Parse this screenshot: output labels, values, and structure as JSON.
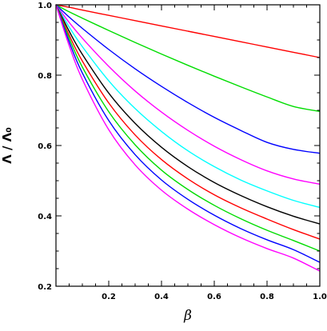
{
  "chart_data": {
    "type": "line",
    "title": "",
    "xlabel": "β",
    "ylabel": "Λ / Λ₀",
    "xlim": [
      0.0,
      1.0
    ],
    "ylim": [
      0.2,
      1.0
    ],
    "x_ticks": [
      0.2,
      0.4,
      0.6,
      0.8,
      1.0
    ],
    "x_tick_labels": [
      "0.2",
      "0.4",
      "0.6",
      "0.8",
      "1.0"
    ],
    "y_ticks": [
      0.2,
      0.4,
      0.6,
      0.8,
      1.0
    ],
    "y_tick_labels": [
      "0.2",
      "0.4",
      "0.6",
      "0.8",
      "1.0"
    ],
    "x_minor_step": 0.05,
    "y_minor_step": 0.05,
    "grid": false,
    "legend": "none",
    "x": [
      0.0,
      0.05,
      0.1,
      0.2,
      0.3,
      0.4,
      0.5,
      0.6,
      0.7,
      0.8,
      0.9,
      1.0
    ],
    "series": [
      {
        "color": "#ff0000",
        "values": [
          1.0,
          0.993,
          0.985,
          0.97,
          0.955,
          0.94,
          0.925,
          0.91,
          0.895,
          0.88,
          0.865,
          0.85
        ]
      },
      {
        "color": "#00dd00",
        "values": [
          1.0,
          0.98,
          0.962,
          0.927,
          0.893,
          0.86,
          0.828,
          0.797,
          0.767,
          0.738,
          0.711,
          0.697
        ]
      },
      {
        "color": "#0000ff",
        "values": [
          1.0,
          0.965,
          0.933,
          0.873,
          0.818,
          0.768,
          0.722,
          0.68,
          0.643,
          0.609,
          0.589,
          0.578
        ]
      },
      {
        "color": "#ff00ff",
        "values": [
          1.0,
          0.95,
          0.905,
          0.825,
          0.755,
          0.695,
          0.643,
          0.598,
          0.56,
          0.528,
          0.505,
          0.49
        ]
      },
      {
        "color": "#00ffff",
        "values": [
          1.0,
          0.937,
          0.881,
          0.784,
          0.705,
          0.64,
          0.585,
          0.54,
          0.502,
          0.471,
          0.444,
          0.424
        ]
      },
      {
        "color": "#000000",
        "values": [
          1.0,
          0.925,
          0.859,
          0.749,
          0.663,
          0.595,
          0.54,
          0.495,
          0.458,
          0.426,
          0.399,
          0.377
        ]
      },
      {
        "color": "#ff0000",
        "values": [
          1.0,
          0.914,
          0.84,
          0.721,
          0.63,
          0.56,
          0.505,
          0.46,
          0.423,
          0.391,
          0.361,
          0.334
        ]
      },
      {
        "color": "#00dd00",
        "values": [
          1.0,
          0.905,
          0.823,
          0.696,
          0.602,
          0.53,
          0.475,
          0.43,
          0.392,
          0.359,
          0.33,
          0.3
        ]
      },
      {
        "color": "#0000ff",
        "values": [
          1.0,
          0.895,
          0.806,
          0.671,
          0.574,
          0.502,
          0.447,
          0.402,
          0.364,
          0.332,
          0.304,
          0.268
        ]
      },
      {
        "color": "#ff00ff",
        "values": [
          1.0,
          0.884,
          0.788,
          0.645,
          0.545,
          0.473,
          0.419,
          0.375,
          0.338,
          0.307,
          0.28,
          0.243
        ]
      }
    ]
  }
}
